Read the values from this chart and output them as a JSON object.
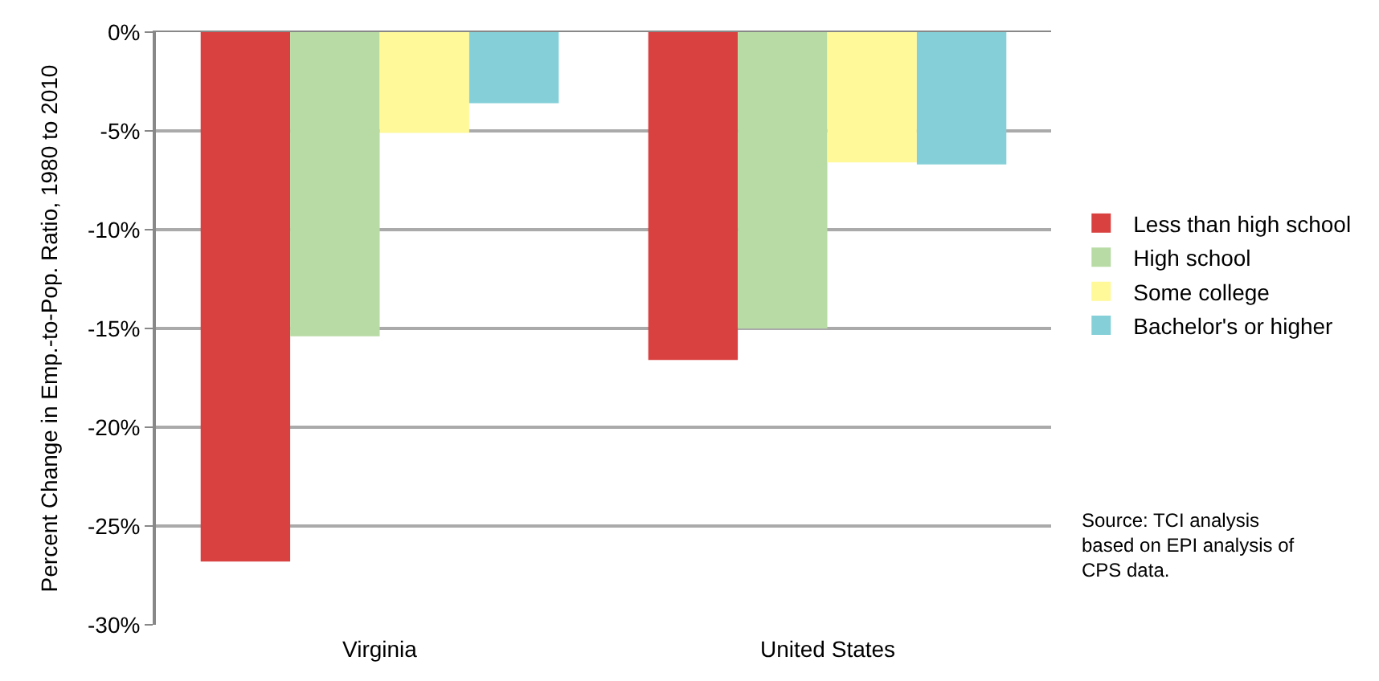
{
  "chart_data": {
    "type": "bar",
    "ylabel": "Percent Change in Emp.-to-Pop. Ratio, 1980 to 2010",
    "categories": [
      "Virginia",
      "United States"
    ],
    "series": [
      {
        "name": "Less than high school",
        "color": "#d94141",
        "values": [
          -26.8,
          -16.6
        ]
      },
      {
        "name": "High school",
        "color": "#b8dba5",
        "values": [
          -15.4,
          -15.0
        ]
      },
      {
        "name": "Some college",
        "color": "#fff99a",
        "values": [
          -5.1,
          -6.6
        ]
      },
      {
        "name": "Bachelor's or higher",
        "color": "#85d0d8",
        "values": [
          -3.6,
          -6.7
        ]
      }
    ],
    "ylim": [
      -30,
      0
    ],
    "yticks": [
      {
        "value": -30,
        "label": "-30%"
      },
      {
        "value": -25,
        "label": "-25%"
      },
      {
        "value": -20,
        "label": "-20%"
      },
      {
        "value": -15,
        "label": "-15%"
      },
      {
        "value": -10,
        "label": "-10%"
      },
      {
        "value": -5,
        "label": "-5%"
      },
      {
        "value": 0,
        "label": "0%"
      }
    ],
    "grid": "y",
    "legend": "right",
    "annotations": [
      "Source: TCI analysis based on EPI analysis of CPS data."
    ]
  }
}
